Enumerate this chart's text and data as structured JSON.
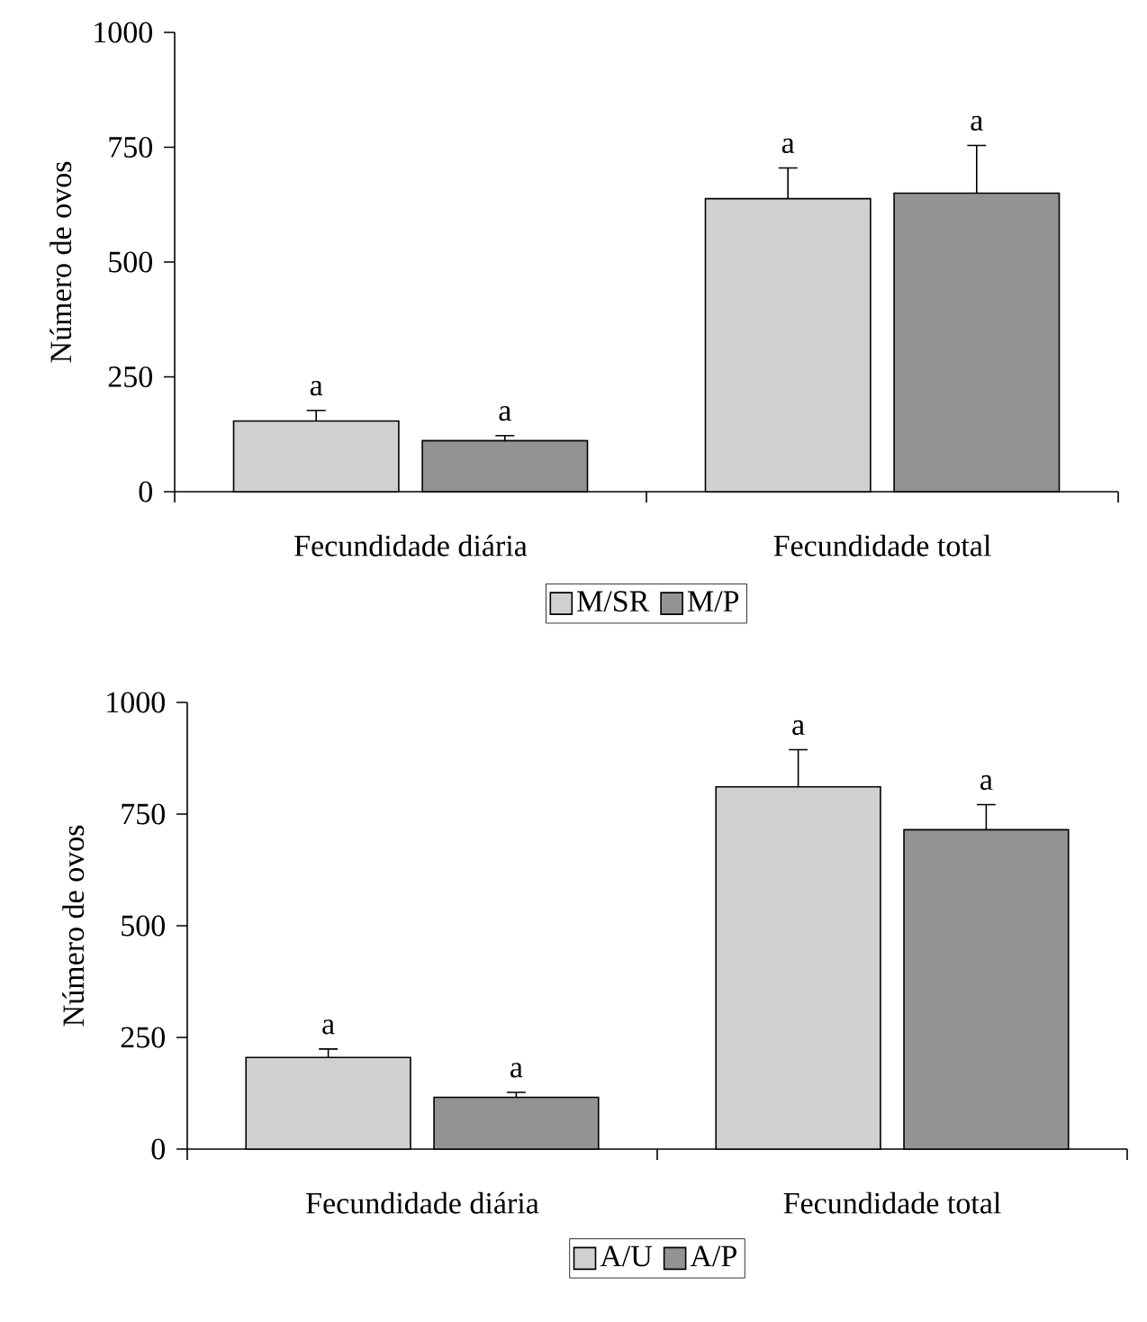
{
  "chart_data": [
    {
      "type": "bar",
      "ylabel": "Número de ovos",
      "categories": [
        "Fecundidade diária",
        "Fecundidade total"
      ],
      "ylim": [
        0,
        1000
      ],
      "yticks": [
        0,
        250,
        500,
        750,
        1000
      ],
      "legend": "bottom",
      "series": [
        {
          "name": "M/SR",
          "color": "#d0d0d0",
          "values": [
            154,
            638
          ],
          "errors": [
            [
              154,
              177
            ],
            [
              638,
              705
            ]
          ]
        },
        {
          "name": "M/P",
          "color": "#939393",
          "values": [
            111,
            650
          ],
          "errors": [
            [
              111,
              122
            ],
            [
              650,
              754
            ]
          ]
        }
      ],
      "annotations": [
        "a",
        "a",
        "a",
        "a"
      ]
    },
    {
      "type": "bar",
      "ylabel": "Número de ovos",
      "categories": [
        "Fecundidade diária",
        "Fecundidade total"
      ],
      "ylim": [
        0,
        1000
      ],
      "yticks": [
        0,
        250,
        500,
        750,
        1000
      ],
      "legend": "bottom",
      "series": [
        {
          "name": "A/U",
          "color": "#d0d0d0",
          "values": [
            205,
            811
          ],
          "errors": [
            [
              205,
              224
            ],
            [
              811,
              894
            ]
          ]
        },
        {
          "name": "A/P",
          "color": "#939393",
          "values": [
            116,
            715
          ],
          "errors": [
            [
              116,
              127
            ],
            [
              715,
              771
            ]
          ]
        }
      ],
      "annotations": [
        "a",
        "a",
        "a",
        "a"
      ]
    }
  ]
}
